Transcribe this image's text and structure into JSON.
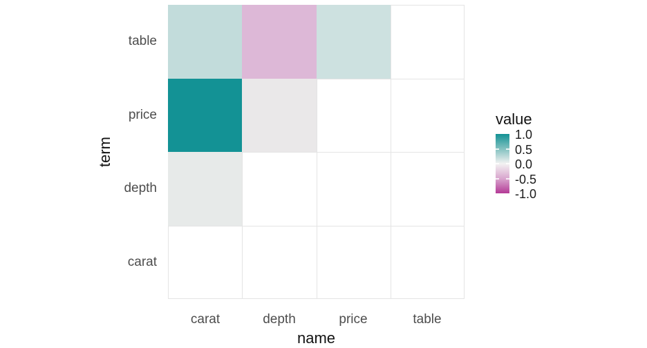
{
  "chart_data": {
    "type": "heatmap",
    "title": "",
    "xlabel": "name",
    "ylabel": "term",
    "x_categories": [
      "carat",
      "depth",
      "price",
      "table"
    ],
    "y_categories_top_to_bottom": [
      "table",
      "price",
      "depth",
      "carat"
    ],
    "grid": true,
    "grid_color": "#e4e4e4",
    "na_cell_color": "#ffffff",
    "cells": [
      {
        "term": "table",
        "name": "carat",
        "value": 0.18,
        "color": "#c2dcdb"
      },
      {
        "term": "table",
        "name": "depth",
        "value": -0.3,
        "color": "#ddb8d7"
      },
      {
        "term": "table",
        "name": "price",
        "value": 0.13,
        "color": "#cde1e0"
      },
      {
        "term": "price",
        "name": "carat",
        "value": 0.92,
        "color": "#139295"
      },
      {
        "term": "price",
        "name": "depth",
        "value": -0.01,
        "color": "#eae8e9"
      },
      {
        "term": "depth",
        "name": "carat",
        "value": 0.03,
        "color": "#e7eae9"
      }
    ],
    "legend": {
      "title": "value",
      "tick_labels": [
        "1.0",
        "0.5",
        "0.0",
        "-0.5",
        "-1.0"
      ],
      "limits": [
        1.0,
        -1.0
      ],
      "position": "right",
      "high_color": "#139295",
      "mid_color": "#f3f2f2",
      "low_color": "#b43a96",
      "gradient_stops": [
        "#139295",
        "#82c1c0",
        "#f3f2f2",
        "#d9a6ce",
        "#b43a96"
      ]
    },
    "text_colors": {
      "axis_text": "#4d4d4d",
      "title_text": "#121212"
    }
  }
}
